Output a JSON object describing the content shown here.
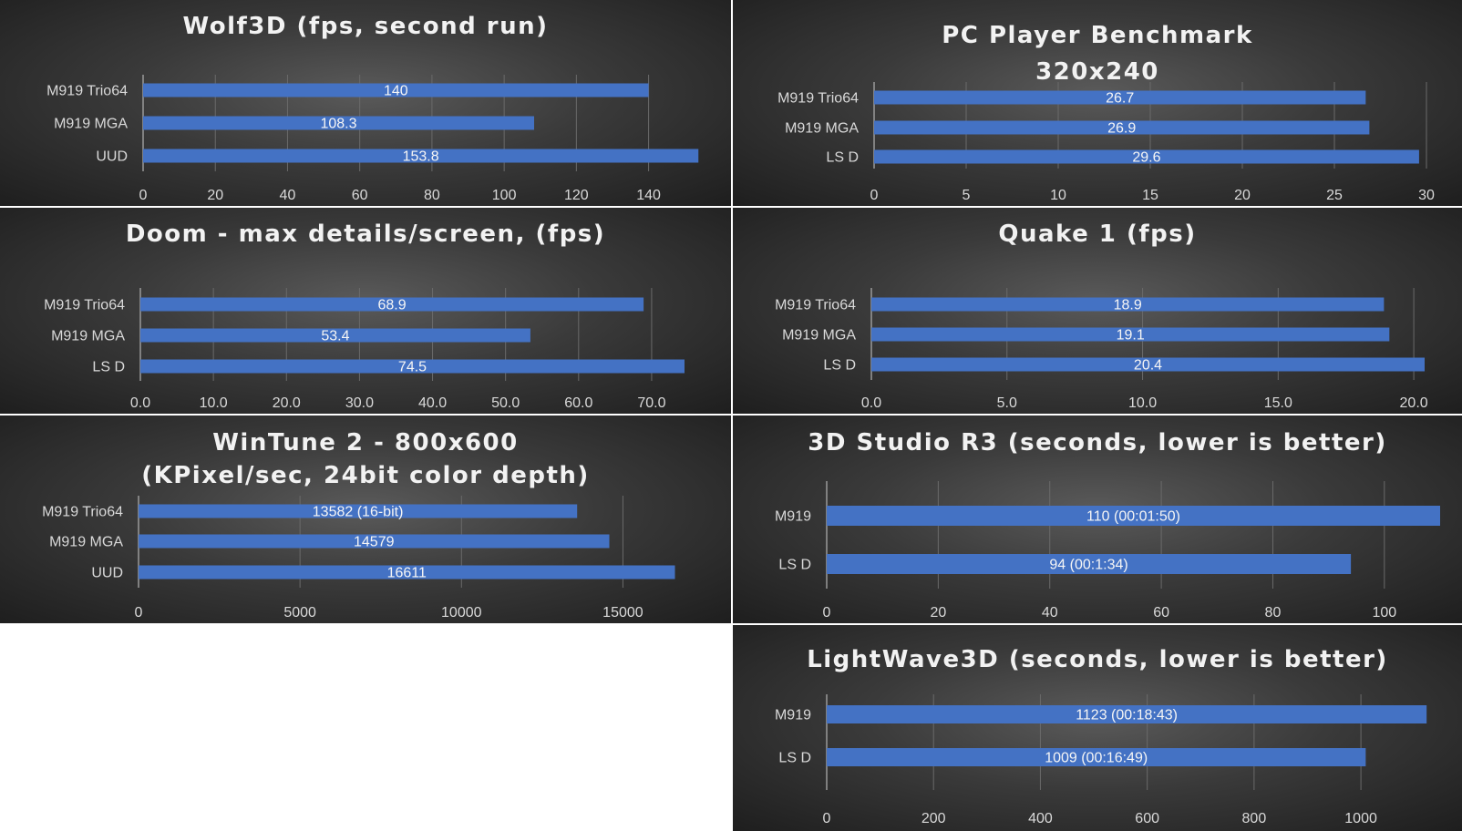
{
  "chart_data": [
    {
      "id": "wolf3d",
      "type": "bar",
      "orientation": "horizontal",
      "title": [
        "Wolf3D (fps, second run)"
      ],
      "categories": [
        "M919 Trio64",
        "M919 MGA",
        "UUD"
      ],
      "values": [
        140,
        108.3,
        153.8
      ],
      "data_labels": [
        "140",
        "108.3",
        "153.8"
      ],
      "xlim": [
        0,
        155
      ],
      "ticks": [
        0,
        20,
        40,
        60,
        80,
        100,
        120,
        140
      ],
      "tick_labels": [
        "0",
        "20",
        "40",
        "60",
        "80",
        "100",
        "120",
        "140"
      ],
      "grid": true,
      "color": "#4472c4"
    },
    {
      "id": "pcplayer",
      "type": "bar",
      "orientation": "horizontal",
      "title": [
        "PC Player Benchmark",
        "320x240"
      ],
      "categories": [
        "M919 Trio64",
        "M919 MGA",
        "LS D"
      ],
      "values": [
        26.7,
        26.9,
        29.6
      ],
      "data_labels": [
        "26.7",
        "26.9",
        "29.6"
      ],
      "xlim": [
        0,
        30
      ],
      "ticks": [
        0,
        5,
        10,
        15,
        20,
        25,
        30
      ],
      "tick_labels": [
        "0",
        "5",
        "10",
        "15",
        "20",
        "25",
        "30"
      ],
      "grid": true,
      "color": "#4472c4"
    },
    {
      "id": "doom",
      "type": "bar",
      "orientation": "horizontal",
      "title": [
        "Doom - max details/screen, (fps)"
      ],
      "categories": [
        "M919 Trio64",
        "M919 MGA",
        "LS D"
      ],
      "values": [
        68.9,
        53.4,
        74.5
      ],
      "data_labels": [
        "68.9",
        "53.4",
        "74.5"
      ],
      "xlim": [
        0,
        75
      ],
      "ticks": [
        0,
        10,
        20,
        30,
        40,
        50,
        60,
        70
      ],
      "tick_labels": [
        "0.0",
        "10.0",
        "20.0",
        "30.0",
        "40.0",
        "50.0",
        "60.0",
        "70.0"
      ],
      "grid": true,
      "color": "#4472c4"
    },
    {
      "id": "quake",
      "type": "bar",
      "orientation": "horizontal",
      "title": [
        "Quake 1 (fps)"
      ],
      "categories": [
        "M919 Trio64",
        "M919 MGA",
        "LS D"
      ],
      "values": [
        18.9,
        19.1,
        20.4
      ],
      "data_labels": [
        "18.9",
        "19.1",
        "20.4"
      ],
      "xlim": [
        0,
        20.4
      ],
      "ticks": [
        0,
        5,
        10,
        15,
        20
      ],
      "tick_labels": [
        "0.0",
        "5.0",
        "10.0",
        "15.0",
        "20.0"
      ],
      "grid": true,
      "color": "#4472c4"
    },
    {
      "id": "wintune",
      "type": "bar",
      "orientation": "horizontal",
      "title": [
        "WinTune 2 - 800x600",
        "(KPixel/sec, 24bit color depth)"
      ],
      "categories": [
        "M919 Trio64",
        "M919 MGA",
        "UUD"
      ],
      "values": [
        13582,
        14579,
        16611
      ],
      "data_labels": [
        "13582 (16-bit)",
        "14579",
        "16611"
      ],
      "xlim": [
        0,
        17500
      ],
      "ticks": [
        0,
        5000,
        10000,
        15000
      ],
      "tick_labels": [
        "0",
        "5000",
        "10000",
        "15000"
      ],
      "grid": true,
      "color": "#4472c4"
    },
    {
      "id": "studio",
      "type": "bar",
      "orientation": "horizontal",
      "title": [
        "3D Studio R3 (seconds, lower is better)"
      ],
      "categories": [
        "M919",
        "LS D"
      ],
      "values": [
        110,
        94
      ],
      "data_labels": [
        "110 (00:01:50)",
        "94 (00:1:34)"
      ],
      "xlim": [
        0,
        110
      ],
      "ticks": [
        0,
        20,
        40,
        60,
        80,
        100
      ],
      "tick_labels": [
        "0",
        "20",
        "40",
        "60",
        "80",
        "100"
      ],
      "grid": true,
      "color": "#4472c4"
    },
    {
      "id": "lightwave",
      "type": "bar",
      "orientation": "horizontal",
      "title": [
        "LightWave3D (seconds, lower is better)"
      ],
      "categories": [
        "M919",
        "LS D"
      ],
      "values": [
        1123,
        1009
      ],
      "data_labels": [
        "1123 (00:18:43)",
        "1009 (00:16:49)"
      ],
      "xlim": [
        0,
        1150
      ],
      "ticks": [
        0,
        200,
        400,
        600,
        800,
        1000
      ],
      "tick_labels": [
        "0",
        "200",
        "400",
        "600",
        "800",
        "1000"
      ],
      "grid": true,
      "color": "#4472c4"
    }
  ]
}
